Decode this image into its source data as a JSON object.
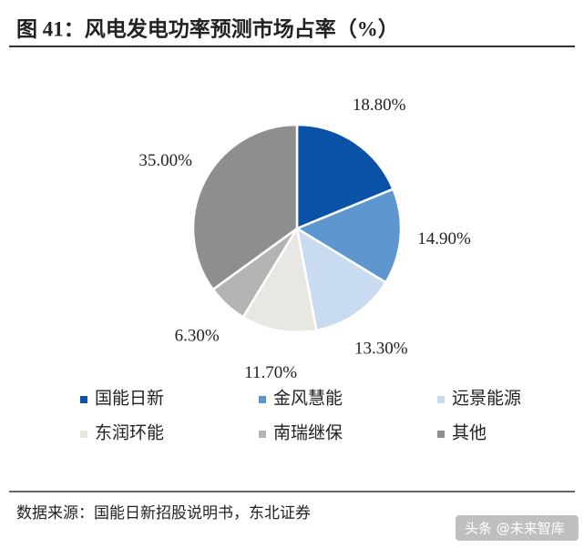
{
  "chart_data": {
    "type": "pie",
    "title": "图 41：风电发电功率预测市场占率（%）",
    "categories": [
      "国能日新",
      "金风慧能",
      "远景能源",
      "东润环能",
      "南瑞继保",
      "其他"
    ],
    "values": [
      18.8,
      14.9,
      13.3,
      11.7,
      6.3,
      35.0
    ],
    "value_labels": [
      "18.80%",
      "14.90%",
      "13.30%",
      "11.70%",
      "6.30%",
      "35.00%"
    ],
    "colors": [
      "#0a52a8",
      "#5e96d0",
      "#c8dbf1",
      "#e9e7e2",
      "#b4b4b4",
      "#8e8e8e"
    ],
    "source": "数据来源：国能日新招股说明书，东北证券",
    "watermark": "头条 @未来智库"
  }
}
